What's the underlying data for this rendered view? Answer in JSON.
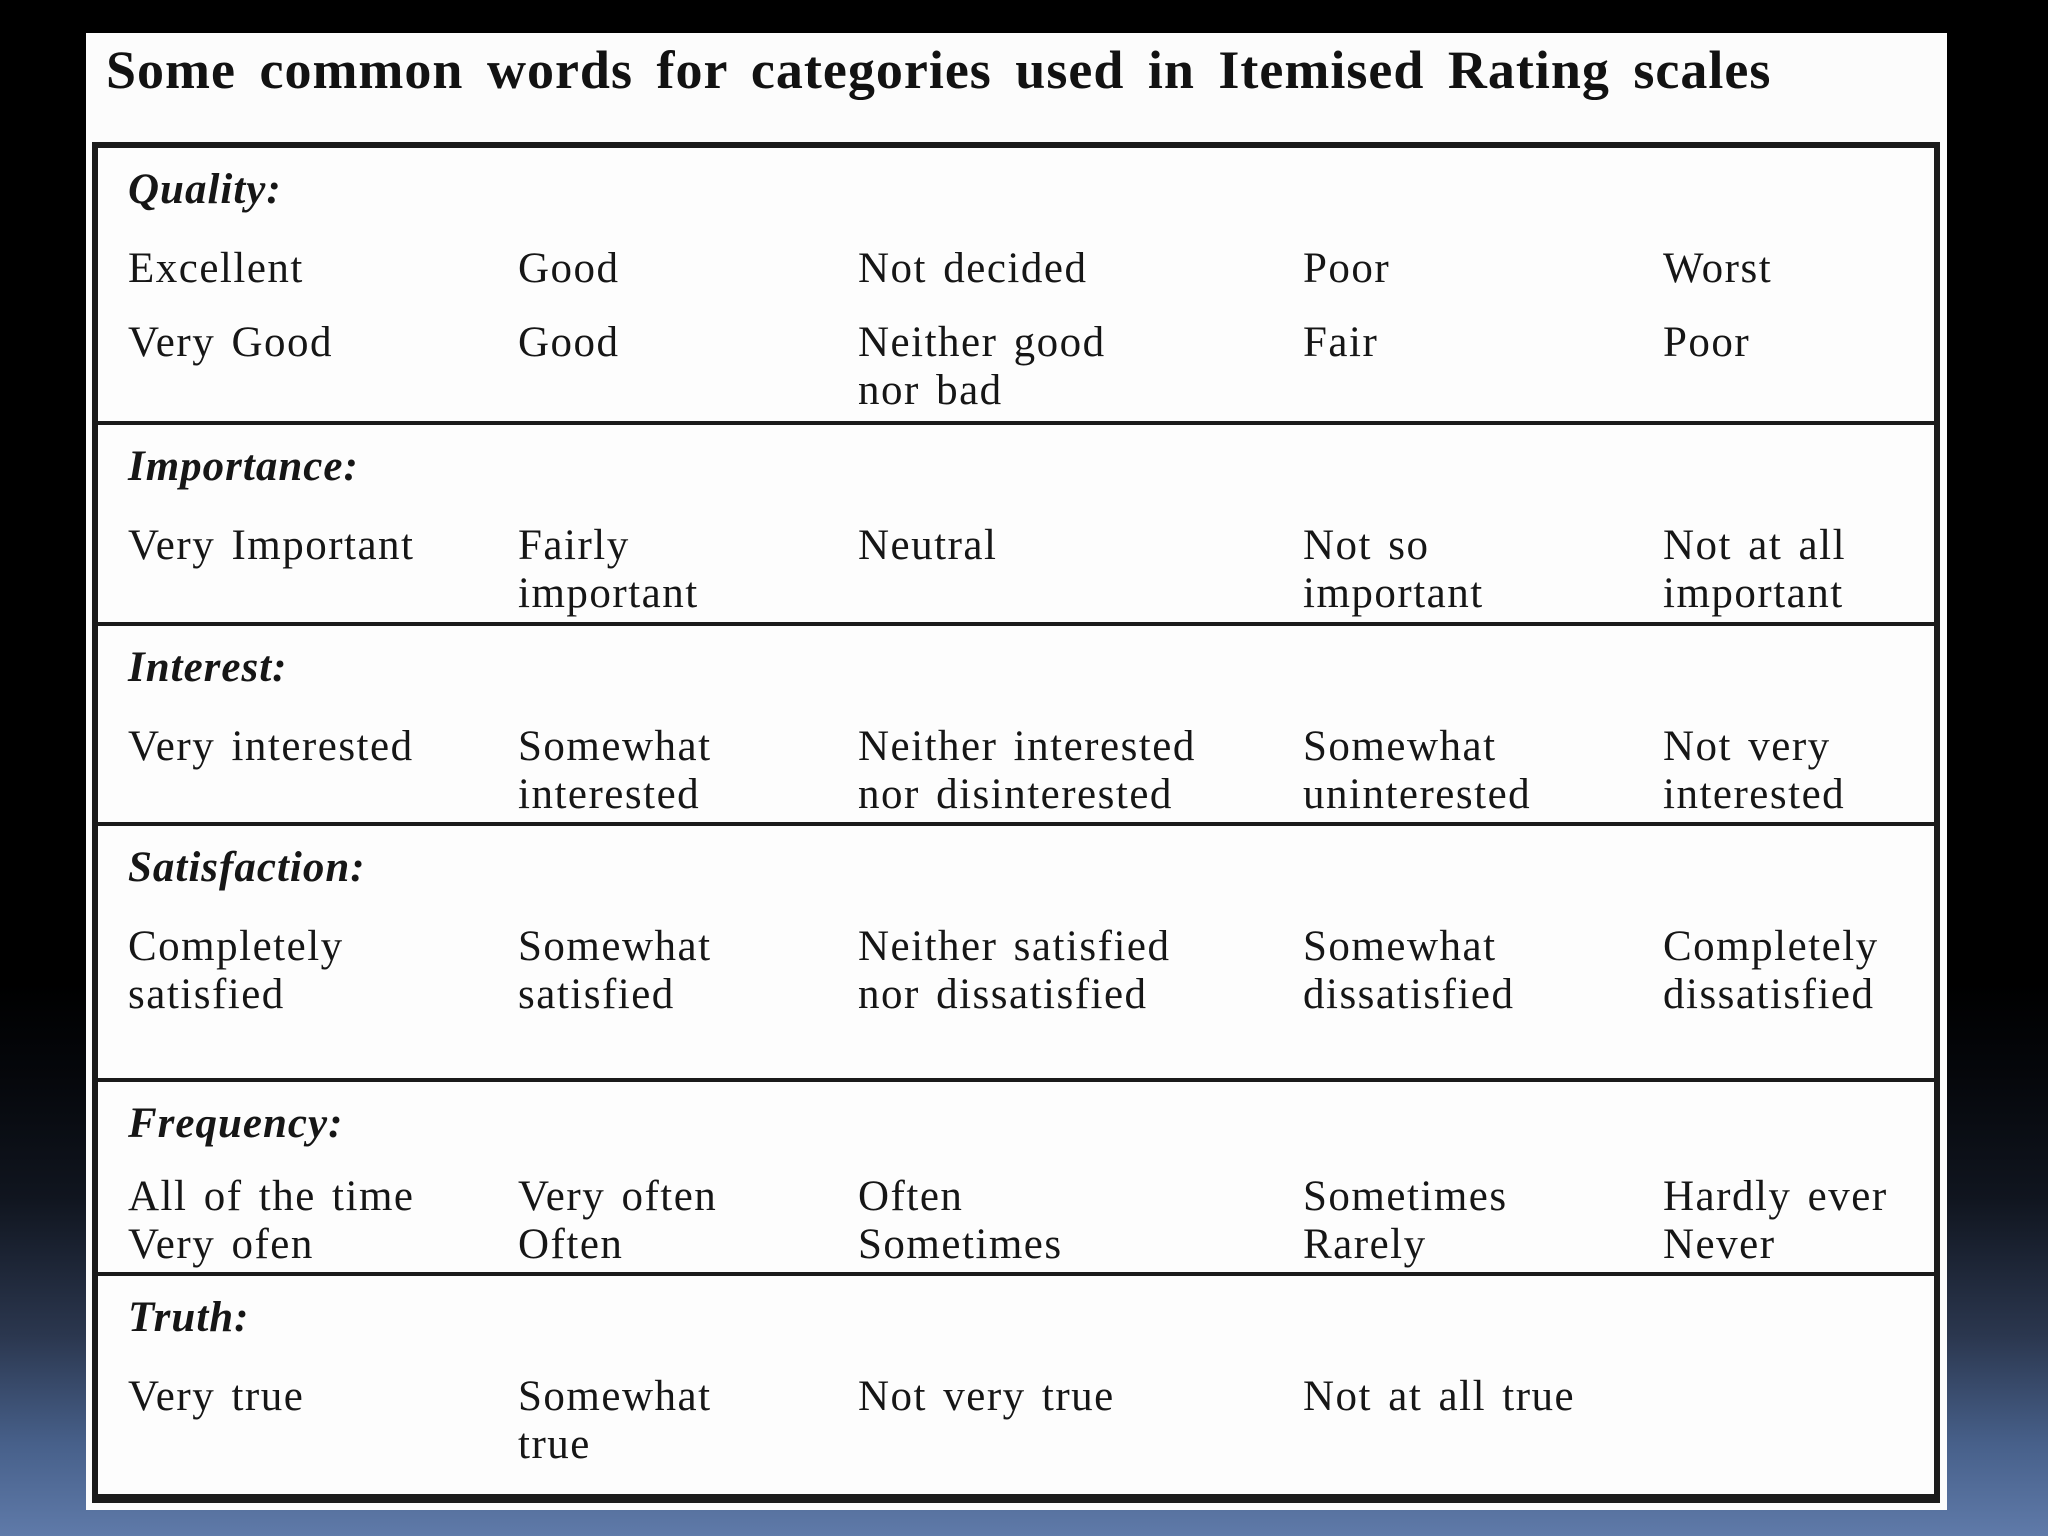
{
  "title": "Some common words for categories used in Itemised Rating scales",
  "table": {
    "sections": [
      {
        "heading": "Quality:",
        "rows": [
          [
            [
              "Excellent"
            ],
            [
              "Good"
            ],
            [
              "Not decided"
            ],
            [
              "Poor"
            ],
            [
              "Worst"
            ]
          ],
          [
            [
              "Very Good"
            ],
            [
              "Good"
            ],
            [
              "Neither good",
              "nor bad"
            ],
            [
              "Fair"
            ],
            [
              "Poor"
            ]
          ]
        ]
      },
      {
        "heading": "Importance:",
        "rows": [
          [
            [
              "Very Important"
            ],
            [
              "Fairly",
              "important"
            ],
            [
              "Neutral"
            ],
            [
              "Not so",
              "important"
            ],
            [
              "Not at all",
              "important"
            ]
          ]
        ]
      },
      {
        "heading": "Interest:",
        "rows": [
          [
            [
              "Very interested"
            ],
            [
              "Somewhat",
              "interested"
            ],
            [
              "Neither interested",
              "nor disinterested"
            ],
            [
              "Somewhat",
              "uninterested"
            ],
            [
              "Not very",
              "interested"
            ]
          ]
        ]
      },
      {
        "heading": "Satisfaction:",
        "rows": [
          [
            [
              "Completely",
              "satisfied"
            ],
            [
              "Somewhat",
              "satisfied"
            ],
            [
              "Neither satisfied",
              "nor dissatisfied"
            ],
            [
              "Somewhat",
              "dissatisfied"
            ],
            [
              "Completely",
              "dissatisfied"
            ]
          ]
        ]
      },
      {
        "heading": "Frequency:",
        "rows": [
          [
            [
              "All of the time"
            ],
            [
              "Very often"
            ],
            [
              "Often"
            ],
            [
              "Sometimes"
            ],
            [
              "Hardly ever"
            ]
          ],
          [
            [
              "Very ofen"
            ],
            [
              "Often"
            ],
            [
              "Sometimes"
            ],
            [
              "Rarely"
            ],
            [
              "Never"
            ]
          ]
        ]
      },
      {
        "heading": "Truth:",
        "rows": [
          [
            [
              "Very true"
            ],
            [
              "Somewhat",
              "true"
            ],
            [
              "Not very true"
            ],
            [
              "Not at all true"
            ],
            [
              ""
            ]
          ]
        ]
      }
    ]
  }
}
